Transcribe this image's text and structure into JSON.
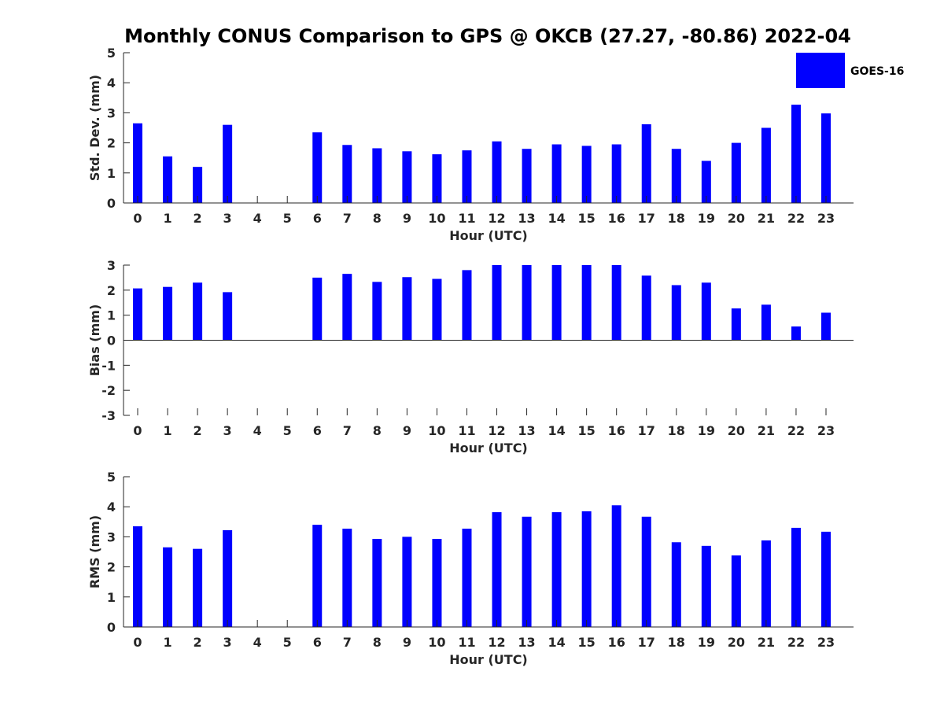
{
  "chart_data": {
    "type": "bar",
    "title": "Monthly CONUS Comparison to GPS @ OKCB (27.27, -80.86) 2022-04",
    "legend": {
      "label": "GOES-16",
      "placement": "top-right"
    },
    "bar_color": "#0000ff",
    "categories": [
      "0",
      "1",
      "2",
      "3",
      "4",
      "5",
      "6",
      "7",
      "8",
      "9",
      "10",
      "11",
      "12",
      "13",
      "14",
      "15",
      "16",
      "17",
      "18",
      "19",
      "20",
      "21",
      "22",
      "23"
    ],
    "panels": [
      {
        "xlabel": "Hour (UTC)",
        "ylabel": "Std. Dev. (mm)",
        "ylim": [
          0,
          5
        ],
        "yticks": [
          "0",
          "1",
          "2",
          "3",
          "4",
          "5"
        ],
        "series": [
          {
            "name": "GOES-16",
            "values": [
              2.65,
              1.55,
              1.2,
              2.6,
              null,
              null,
              2.35,
              1.93,
              1.82,
              1.72,
              1.62,
              1.75,
              2.05,
              1.8,
              1.95,
              1.9,
              1.95,
              2.62,
              1.8,
              1.4,
              2.0,
              2.5,
              3.27,
              2.98
            ]
          }
        ]
      },
      {
        "xlabel": "Hour (UTC)",
        "ylabel": "Bias (mm)",
        "ylim": [
          -3,
          3
        ],
        "yticks": [
          "-3",
          "-2",
          "-1",
          "0",
          "1",
          "2",
          "3"
        ],
        "series": [
          {
            "name": "GOES-16",
            "values": [
              2.07,
              2.13,
              2.3,
              1.92,
              null,
              null,
              2.5,
              2.65,
              2.33,
              2.52,
              2.45,
              2.8,
              3.0,
              3.0,
              3.0,
              3.0,
              3.0,
              2.58,
              2.2,
              2.3,
              1.27,
              1.42,
              0.55,
              1.1
            ]
          }
        ]
      },
      {
        "xlabel": "Hour (UTC)",
        "ylabel": "RMS (mm)",
        "ylim": [
          0,
          5
        ],
        "yticks": [
          "0",
          "1",
          "2",
          "3",
          "4",
          "5"
        ],
        "series": [
          {
            "name": "GOES-16",
            "values": [
              3.35,
              2.65,
              2.6,
              3.22,
              null,
              null,
              3.4,
              3.27,
              2.93,
              3.0,
              2.93,
              3.27,
              3.82,
              3.67,
              3.82,
              3.85,
              4.05,
              3.67,
              2.82,
              2.7,
              2.38,
              2.88,
              3.3,
              3.17
            ]
          }
        ]
      }
    ]
  }
}
